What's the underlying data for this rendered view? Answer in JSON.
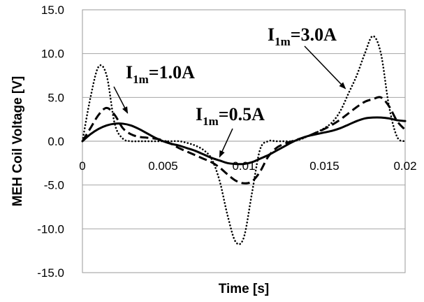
{
  "chart_data": {
    "type": "line",
    "title": "",
    "xlabel": "Time [s]",
    "ylabel": "MEH Coil Voltage [V]",
    "xlim": [
      0,
      0.02
    ],
    "ylim": [
      -15,
      15
    ],
    "x_ticks": [
      0,
      0.005,
      0.01,
      0.015,
      0.02
    ],
    "x_tick_labels": [
      "0",
      "0.005",
      "0.01",
      "0.015",
      "0.02"
    ],
    "y_ticks": [
      15,
      10,
      5,
      0,
      -5,
      -10,
      -15
    ],
    "y_tick_labels": [
      "15.0",
      "10.0",
      "5.0",
      "0.0",
      "-5.0",
      "-10.0",
      "-15.0"
    ],
    "grid": "horizontal",
    "series": [
      {
        "label_main": "I",
        "label_sub": "1m",
        "label_rest": "=0.5A",
        "style": "solid",
        "x": [
          0,
          0.0005,
          0.001,
          0.0015,
          0.002,
          0.0025,
          0.003,
          0.0035,
          0.004,
          0.0045,
          0.005,
          0.0055,
          0.006,
          0.0065,
          0.007,
          0.0075,
          0.008,
          0.0085,
          0.009,
          0.0095,
          0.01,
          0.0105,
          0.011,
          0.0115,
          0.012,
          0.0125,
          0.013,
          0.0135,
          0.014,
          0.0145,
          0.015,
          0.0155,
          0.016,
          0.0165,
          0.017,
          0.0175,
          0.018,
          0.0185,
          0.019,
          0.0195,
          0.02
        ],
        "y": [
          0.0,
          0.8,
          1.4,
          1.8,
          2.0,
          2.0,
          1.8,
          1.4,
          0.9,
          0.4,
          0.0,
          -0.3,
          -0.5,
          -0.8,
          -1.1,
          -1.5,
          -1.9,
          -2.2,
          -2.5,
          -2.6,
          -2.6,
          -2.4,
          -2.0,
          -1.6,
          -1.1,
          -0.6,
          -0.1,
          0.3,
          0.6,
          0.8,
          1.0,
          1.2,
          1.5,
          1.9,
          2.3,
          2.6,
          2.7,
          2.7,
          2.6,
          2.4,
          2.3
        ]
      },
      {
        "label_main": "I",
        "label_sub": "1m",
        "label_rest": "=1.0A",
        "style": "dashed",
        "x": [
          0,
          0.0005,
          0.001,
          0.0015,
          0.002,
          0.0025,
          0.003,
          0.0035,
          0.004,
          0.0045,
          0.005,
          0.0055,
          0.006,
          0.0065,
          0.007,
          0.0075,
          0.008,
          0.0085,
          0.009,
          0.0095,
          0.01,
          0.0105,
          0.011,
          0.0115,
          0.012,
          0.0125,
          0.013,
          0.0135,
          0.014,
          0.0145,
          0.015,
          0.0155,
          0.016,
          0.0165,
          0.017,
          0.0175,
          0.018,
          0.0185,
          0.019,
          0.0195,
          0.02
        ],
        "y": [
          0.0,
          1.5,
          3.0,
          3.8,
          3.0,
          1.5,
          0.8,
          0.5,
          0.4,
          0.3,
          0.1,
          -0.3,
          -0.8,
          -1.2,
          -1.6,
          -2.0,
          -2.4,
          -3.0,
          -3.8,
          -4.5,
          -4.8,
          -4.6,
          -3.5,
          -1.8,
          -0.8,
          -0.3,
          0.0,
          0.3,
          0.6,
          1.0,
          1.4,
          1.9,
          2.5,
          3.2,
          3.9,
          4.5,
          4.8,
          5.0,
          4.0,
          2.3,
          1.3
        ]
      },
      {
        "label_main": "I",
        "label_sub": "1m",
        "label_rest": "=3.0A",
        "style": "dotted",
        "x": [
          0,
          0.0005,
          0.001,
          0.0015,
          0.002,
          0.0025,
          0.003,
          0.0035,
          0.004,
          0.0045,
          0.005,
          0.0055,
          0.006,
          0.0065,
          0.007,
          0.0075,
          0.008,
          0.0085,
          0.009,
          0.0095,
          0.01,
          0.0105,
          0.011,
          0.0115,
          0.012,
          0.0125,
          0.013,
          0.0135,
          0.014,
          0.0145,
          0.015,
          0.0155,
          0.016,
          0.0165,
          0.017,
          0.0175,
          0.018,
          0.0185,
          0.019,
          0.0195,
          0.02
        ],
        "y": [
          0.0,
          5.0,
          8.5,
          7.5,
          2.0,
          0.3,
          0.0,
          0.0,
          0.0,
          0.0,
          0.0,
          0.0,
          0.0,
          -0.2,
          -0.5,
          -1.0,
          -2.0,
          -4.5,
          -8.5,
          -11.5,
          -11.0,
          -6.0,
          -1.0,
          0.0,
          0.0,
          0.0,
          0.0,
          0.2,
          0.6,
          1.0,
          1.5,
          2.2,
          3.5,
          5.5,
          7.5,
          10.0,
          12.0,
          10.0,
          4.0,
          0.5,
          0.0
        ]
      }
    ],
    "annotations": [
      {
        "series": 2,
        "target": [
          0.0163,
          6.0
        ]
      },
      {
        "series": 1,
        "target": [
          0.0028,
          3.2
        ]
      },
      {
        "series": 0,
        "target": [
          0.0085,
          -1.8
        ]
      }
    ]
  }
}
